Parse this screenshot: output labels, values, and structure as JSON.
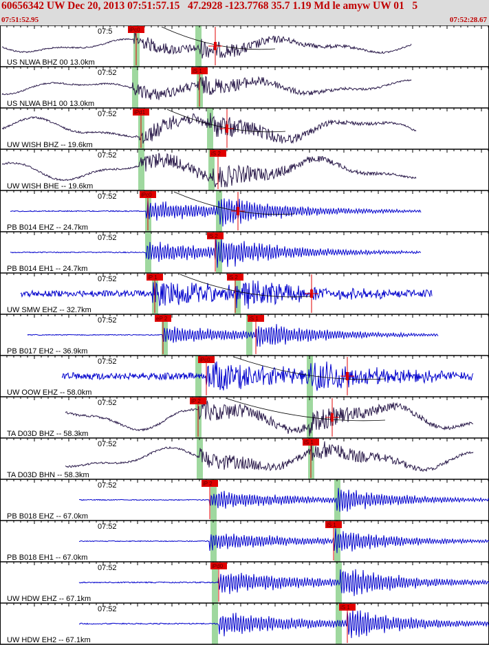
{
  "header": {
    "title": "60656342 UW Dec 20, 2013 07:51:57.15   47.2928 -123.7768 35.7 1.19 Md le amyw UW 01   5",
    "start_time": "07:51:52.95",
    "end_time": "07:52:28.67"
  },
  "colors": {
    "header_bg": "#dcdcdc",
    "header_text": "#c00000",
    "trace_dark": "#2a1a4a",
    "trace_blue": "#0000cc",
    "pick_marker": "#e00000",
    "pick_window": "#9fd89f",
    "theory_curve": "#000000"
  },
  "traces": [
    {
      "time": "07:5",
      "label": "US NLWA BHZ 00 13.0km",
      "color": "dark",
      "type": "low",
      "start": 3,
      "end": 598,
      "amp": 0.7,
      "onset": 195,
      "s": 290,
      "picks": [
        {
          "t": "iPc0",
          "x": 198
        },
        {
          "t": "",
          "x": 313
        }
      ],
      "green": [
        198,
        288
      ],
      "curve": true
    },
    {
      "time": "07:52",
      "label": "US NLWA BH1 00 13.0km",
      "color": "dark",
      "type": "low",
      "start": 3,
      "end": 598,
      "amp": 0.7,
      "onset": 193,
      "s": 288,
      "picks": [
        {
          "t": "iS 1",
          "x": 290
        }
      ],
      "green": [
        196,
        290
      ],
      "curve": false
    },
    {
      "time": "07:52",
      "label": "UW WISH BHZ -- 19.6km",
      "color": "dark",
      "type": "low",
      "start": 3,
      "end": 605,
      "amp": 0.9,
      "onset": 203,
      "s": 305,
      "picks": [
        {
          "t": "iPd1",
          "x": 205
        },
        {
          "t": "",
          "x": 330
        }
      ],
      "green": [
        205,
        305
      ],
      "curve": true
    },
    {
      "time": "07:52",
      "label": "UW WISH BHE -- 19.6km",
      "color": "dark",
      "type": "low",
      "start": 3,
      "end": 605,
      "amp": 0.9,
      "onset": 203,
      "s": 310,
      "picks": [
        {
          "t": "iS 2",
          "x": 317
        }
      ],
      "green": [
        205,
        307
      ],
      "curve": false
    },
    {
      "time": "07:52",
      "label": "PB B014 EHZ -- 24.7km",
      "color": "blue",
      "type": "quiet",
      "start": 15,
      "end": 612,
      "amp": 0.9,
      "onset": 213,
      "s": 318,
      "picks": [
        {
          "t": "iPc0",
          "x": 215
        },
        {
          "t": "",
          "x": 346
        }
      ],
      "green": [
        215,
        318
      ],
      "curve": true
    },
    {
      "time": "07:52",
      "label": "PB B014 EH1 -- 24.7km",
      "color": "blue",
      "type": "quiet",
      "start": 15,
      "end": 612,
      "amp": 0.9,
      "onset": 213,
      "s": 313,
      "picks": [
        {
          "t": "iS 2",
          "x": 313
        }
      ],
      "green": [
        215,
        318
      ],
      "curve": false
    },
    {
      "time": "07:52",
      "label": "UW SMW EHZ -- 32.7km",
      "color": "blue",
      "type": "noisy",
      "start": 30,
      "end": 628,
      "amp": 0.9,
      "onset": 222,
      "s": 342,
      "picks": [
        {
          "t": "iP 1",
          "x": 225
        },
        {
          "t": "iS 2",
          "x": 342
        },
        {
          "t": "",
          "x": 453
        }
      ],
      "green": [
        225,
        345
      ],
      "curve": true
    },
    {
      "time": "07:52",
      "label": "PB B017 EH2 -- 36.9km",
      "color": "blue",
      "type": "quiet",
      "start": 40,
      "end": 637,
      "amp": 0.8,
      "onset": 237,
      "s": 372,
      "picks": [
        {
          "t": "eP 2",
          "x": 237
        },
        {
          "t": "iS 1",
          "x": 372
        }
      ],
      "green": [
        239,
        362
      ],
      "curve": false
    },
    {
      "time": "07:52",
      "label": "UW OOW EHZ -- 58.0km",
      "color": "blue",
      "type": "noisy",
      "start": 90,
      "end": 688,
      "amp": 1.0,
      "onset": 300,
      "s": 450,
      "picks": [
        {
          "t": "iPc0",
          "x": 300
        },
        {
          "t": "",
          "x": 505
        }
      ],
      "green": [
        288,
        450
      ],
      "curve": true
    },
    {
      "time": "07:52",
      "label": "TA D03D BHZ -- 58.3km",
      "color": "dark",
      "type": "low",
      "start": 95,
      "end": 688,
      "amp": 1.0,
      "onset": 288,
      "s": 450,
      "picks": [
        {
          "t": "iP 2",
          "x": 288
        },
        {
          "t": "",
          "x": 483
        }
      ],
      "green": [
        288,
        450
      ],
      "curve": true
    },
    {
      "time": "07:52",
      "label": "TA D03D BHN -- 58.3km",
      "color": "dark",
      "type": "low",
      "start": 95,
      "end": 688,
      "amp": 0.9,
      "onset": 290,
      "s": 452,
      "picks": [
        {
          "t": "iS 1",
          "x": 452
        }
      ],
      "green": [
        290,
        452
      ],
      "curve": false
    },
    {
      "time": "07:52",
      "label": "PB B018 EHZ -- 67.0km",
      "color": "blue",
      "type": "quiet",
      "start": 115,
      "end": 711,
      "amp": 0.8,
      "onset": 305,
      "s": 490,
      "picks": [
        {
          "t": "iP 2",
          "x": 305
        }
      ],
      "green": [
        310,
        490
      ],
      "curve": false
    },
    {
      "time": "07:52",
      "label": "PB B018 EH1 -- 67.0km",
      "color": "blue",
      "type": "quiet",
      "start": 115,
      "end": 711,
      "amp": 0.8,
      "onset": 305,
      "s": 485,
      "picks": [
        {
          "t": "iS 1",
          "x": 485
        }
      ],
      "green": [
        310,
        490
      ],
      "curve": false
    },
    {
      "time": "07:52",
      "label": "UW HDW EHZ -- 67.1km",
      "color": "blue",
      "type": "quiet",
      "start": 115,
      "end": 711,
      "amp": 1.0,
      "onset": 318,
      "s": 495,
      "picks": [
        {
          "t": "iPd0",
          "x": 318
        }
      ],
      "green": [
        312,
        492
      ],
      "curve": false
    },
    {
      "time": "07:52",
      "label": "UW HDW EH2 -- 67.1km",
      "color": "blue",
      "type": "quiet",
      "start": 115,
      "end": 711,
      "amp": 1.0,
      "onset": 318,
      "s": 505,
      "picks": [
        {
          "t": "iS 1",
          "x": 505
        }
      ],
      "green": [
        312,
        492
      ],
      "curve": false
    }
  ]
}
